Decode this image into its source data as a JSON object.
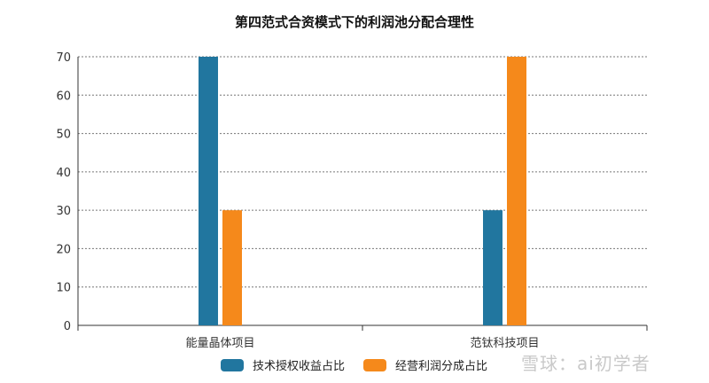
{
  "chart_data": {
    "type": "bar",
    "title": "第四范式合资模式下的利润池分配合理性",
    "categories": [
      "能量晶体项目",
      "范钛科技项目"
    ],
    "series": [
      {
        "name": "技术授权收益占比",
        "values": [
          70,
          30
        ],
        "color": "#21769f"
      },
      {
        "name": "经营利润分成占比",
        "values": [
          30,
          70
        ],
        "color": "#f5891b"
      }
    ],
    "ylim": [
      0,
      70
    ],
    "yticks": [
      0,
      10,
      20,
      30,
      40,
      50,
      60,
      70
    ],
    "grid": true,
    "legend_position": "bottom-center"
  },
  "watermark": "雪球：ai初学者"
}
